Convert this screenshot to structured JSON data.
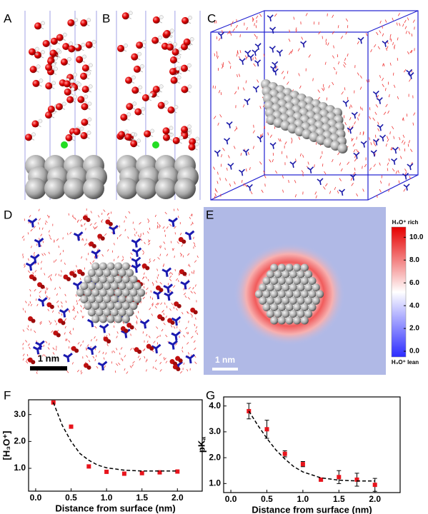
{
  "panel_labels": [
    "A",
    "B",
    "C",
    "D",
    "E",
    "F",
    "G"
  ],
  "scale_bars": [
    "1 nm",
    "1 nm"
  ],
  "colorbar": {
    "top_label": "H₃O⁺ rich",
    "bottom_label": "H₃O⁺ lean",
    "lim": [
      -0.5,
      10.9
    ],
    "ticks": [
      {
        "value": 10,
        "label": "10.0"
      },
      {
        "value": 8,
        "label": "8.0"
      },
      {
        "value": 6,
        "label": "6.0"
      },
      {
        "value": 4,
        "label": "4.0"
      },
      {
        "value": 2,
        "label": "2.0"
      },
      {
        "value": 0,
        "label": "0.0"
      }
    ]
  },
  "chart_data": [
    {
      "type": "scatter",
      "xlabel": "Distance from surface (nm)",
      "ylabel": "[H₃O⁺]",
      "xlim": [
        -0.1,
        2.35
      ],
      "ylim": [
        0.15,
        3.55
      ],
      "xticks": [
        {
          "value": 0,
          "label": "0.0"
        },
        {
          "value": 0.5,
          "label": "0.5"
        },
        {
          "value": 1,
          "label": "1.0"
        },
        {
          "value": 1.5,
          "label": "1.5"
        },
        {
          "value": 2,
          "label": "2.0"
        }
      ],
      "yticks": [
        {
          "value": 1,
          "label": "1.0"
        },
        {
          "value": 2,
          "label": "2.0"
        },
        {
          "value": 3,
          "label": "3.0"
        }
      ],
      "series": [
        {
          "kind": "points",
          "color": "#e8141c",
          "x": [
            0.25,
            0.5,
            0.75,
            1.0,
            1.25,
            1.5,
            1.75,
            2.0
          ],
          "values": [
            3.45,
            2.55,
            1.07,
            0.87,
            0.8,
            0.82,
            0.85,
            0.88
          ]
        },
        {
          "kind": "dashed-line",
          "color": "#000000",
          "x": [
            0.25,
            0.375,
            0.5,
            0.625,
            0.75,
            0.875,
            1.0,
            1.25,
            1.5,
            1.75,
            2.0
          ],
          "values": [
            3.45,
            2.6,
            2.0,
            1.55,
            1.3,
            1.12,
            1.02,
            0.93,
            0.9,
            0.9,
            0.9
          ]
        }
      ]
    },
    {
      "type": "scatter",
      "xlabel": "Distance from surface (nm)",
      "ylabel": "pKₐ",
      "xlim": [
        -0.1,
        2.35
      ],
      "ylim": [
        0.65,
        4.35
      ],
      "xticks": [
        {
          "value": 0,
          "label": "0.0"
        },
        {
          "value": 0.5,
          "label": "0.5"
        },
        {
          "value": 1,
          "label": "1.0"
        },
        {
          "value": 1.5,
          "label": "1.5"
        },
        {
          "value": 2,
          "label": "2.0"
        }
      ],
      "yticks": [
        {
          "value": 1,
          "label": "1.0"
        },
        {
          "value": 2,
          "label": "2.0"
        },
        {
          "value": 3,
          "label": "3.0"
        },
        {
          "value": 4,
          "label": "4.0"
        }
      ],
      "series": [
        {
          "kind": "points",
          "color": "#e8141c",
          "x": [
            0.25,
            0.5,
            0.75,
            1.0,
            1.25,
            1.5,
            1.75,
            2.0
          ],
          "values": [
            3.8,
            3.1,
            2.15,
            1.75,
            1.15,
            1.25,
            1.15,
            0.95
          ],
          "errors": [
            0.3,
            0.35,
            0.12,
            0.1,
            0.05,
            0.25,
            0.25,
            0.25
          ]
        },
        {
          "kind": "dashed-line",
          "color": "#000000",
          "x": [
            0.25,
            0.375,
            0.5,
            0.625,
            0.75,
            0.875,
            1.0,
            1.25,
            1.5,
            1.75,
            2.0
          ],
          "values": [
            3.8,
            3.25,
            2.75,
            2.3,
            1.95,
            1.65,
            1.45,
            1.22,
            1.13,
            1.1,
            1.1
          ]
        }
      ]
    }
  ]
}
